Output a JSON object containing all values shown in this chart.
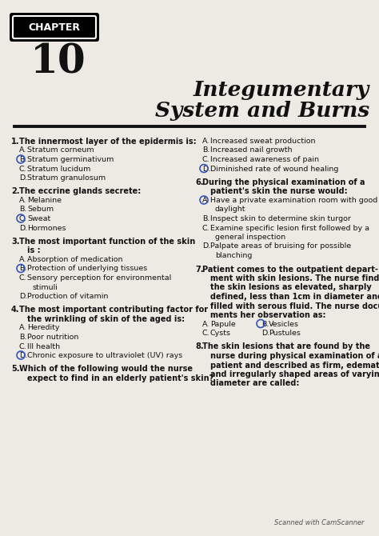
{
  "bg_color": "#edeae3",
  "chapter_label": "CHAPTER",
  "chapter_num": "10",
  "title_line1": "Integumentary",
  "title_line2": "System and Burns",
  "footer": "Scanned with CamScanner",
  "questions_left": [
    {
      "num": "1.",
      "bold": "The innermost layer of the epidermis is:",
      "options": [
        {
          "letter": "A.",
          "text": "Stratum corneum",
          "circle": false
        },
        {
          "letter": "B.",
          "text": "Stratum germinativum",
          "circle": true
        },
        {
          "letter": "C.",
          "text": "Stratum lucidum",
          "circle": false
        },
        {
          "letter": "D.",
          "text": "Stratum granulosum",
          "circle": false
        }
      ]
    },
    {
      "num": "2.",
      "bold": "The eccrine glands secrete:",
      "options": [
        {
          "letter": "A.",
          "text": "Melanine",
          "circle": false
        },
        {
          "letter": "B.",
          "text": "Sebum",
          "circle": false
        },
        {
          "letter": "C.",
          "text": "Sweat",
          "circle": true
        },
        {
          "letter": "D.",
          "text": "Hormones",
          "circle": false
        }
      ]
    },
    {
      "num": "3.",
      "bold": "The most important function of the skin\nis :",
      "options": [
        {
          "letter": "A.",
          "text": "Absorption of medication",
          "circle": false
        },
        {
          "letter": "B.",
          "text": "Protection of underlying tissues",
          "circle": true
        },
        {
          "letter": "C.",
          "text": "Sensory perception for environmental\nstimuli",
          "circle": false
        },
        {
          "letter": "D.",
          "text": "Production of vitamin",
          "circle": false
        }
      ]
    },
    {
      "num": "4.",
      "bold": "The most important contributing factor for\nthe wrinkling of skin of the aged is:",
      "options": [
        {
          "letter": "A.",
          "text": "Heredity",
          "circle": false
        },
        {
          "letter": "B.",
          "text": "Poor nutrition",
          "circle": false
        },
        {
          "letter": "C.",
          "text": "Ill health",
          "circle": false
        },
        {
          "letter": "D.",
          "text": "Chronic exposure to ultraviolet (UV) rays",
          "circle": true
        }
      ]
    },
    {
      "num": "5.",
      "bold": "Which of the following would the nurse\nexpect to find in an elderly patient's skin?",
      "options": []
    }
  ],
  "q5_options": [
    {
      "letter": "A.",
      "text": "Increased sweat production",
      "circle": false
    },
    {
      "letter": "B.",
      "text": "Increased nail growth",
      "circle": false
    },
    {
      "letter": "C.",
      "text": "Increased awareness of pain",
      "circle": false
    },
    {
      "letter": "D.",
      "text": "Diminished rate of wound healing",
      "circle": true
    }
  ],
  "questions_right": [
    {
      "num": "6.",
      "bold": "During the physical examination of a\npatient's skin the nurse would:",
      "options": [
        {
          "letter": "A.",
          "text": "Have a private examination room with good\ndaylight",
          "circle": true
        },
        {
          "letter": "B.",
          "text": "Inspect skin to determine skin turgor",
          "circle": false
        },
        {
          "letter": "C.",
          "text": "Examine specific lesion first followed by a\ngeneral inspection",
          "circle": false
        },
        {
          "letter": "D.",
          "text": "Palpate areas of bruising for possible\nblanching",
          "circle": false
        }
      ]
    },
    {
      "num": "7.",
      "bold": "Patient comes to the outpatient depart-\nment with skin lesions. The nurse finds\nthe skin lesions as elevated, sharply\ndefined, less than 1cm in diameter and\nfilled with serous fluid. The nurse docu-\nments her observation as:",
      "options_inline": [
        {
          "letter": "A.",
          "text": "Papule",
          "circle": false,
          "col": 0
        },
        {
          "letter": "B.",
          "text": "Vesicles",
          "circle": true,
          "col": 1
        },
        {
          "letter": "C.",
          "text": "Cysts",
          "circle": false,
          "col": 0
        },
        {
          "letter": "D.",
          "text": "Pustules",
          "circle": false,
          "col": 1
        }
      ]
    },
    {
      "num": "8.",
      "bold": "The skin lesions that are found by the\nnurse during physical examination of a\npatient and described as firm, edematous\nand irregularly shaped areas of varying\ndiameter are called:",
      "options": []
    }
  ]
}
